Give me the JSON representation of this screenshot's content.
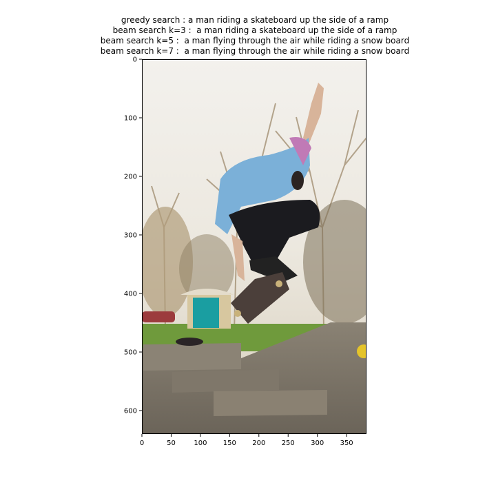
{
  "figure": {
    "title_lines": [
      "greedy search : a man riding a skateboard up the side of a ramp",
      "beam search k=3 :  a man riding a skateboard up the side of a ramp",
      "beam search k=5 :  a man flying through the air while riding a snow board",
      "beam search k=7 :  a man flying through the air while riding a snow board"
    ]
  },
  "chart_data": {
    "type": "image",
    "title": "greedy search : a man riding a skateboard up the side of a ramp\nbeam search k=3 :  a man riding a skateboard up the side of a ramp\nbeam search k=5 :  a man flying through the air while riding a snow board\nbeam search k=7 :  a man flying through the air while riding a snow board",
    "xlim": [
      0,
      384
    ],
    "ylim": [
      640,
      0
    ],
    "x_ticks": [
      0,
      50,
      100,
      150,
      200,
      250,
      300,
      350
    ],
    "y_ticks": [
      0,
      100,
      200,
      300,
      400,
      500,
      600
    ],
    "grid": false,
    "image_description": "photo of a skateboarder mid-air performing a trick in a skatepark, trees and a small teal-doored shed in the background"
  },
  "colors": {
    "sky": "#f1efe9",
    "trees": "#a58d6a",
    "grass": "#6f9a3c",
    "concrete": "#7d7568",
    "shirt": "#7bb0d8",
    "pants": "#1b1b1f",
    "door": "#1a9ea1"
  }
}
